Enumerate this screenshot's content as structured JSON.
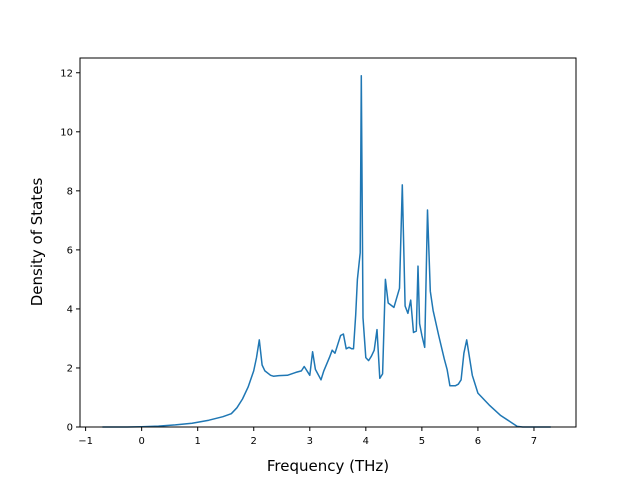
{
  "chart_data": {
    "type": "line",
    "title": "",
    "xlabel": "Frequency (THz)",
    "ylabel": "Density of States",
    "xlim": [
      -1.1,
      7.75
    ],
    "ylim": [
      0,
      12.5
    ],
    "xticks": [
      -1,
      0,
      1,
      2,
      3,
      4,
      5,
      6,
      7
    ],
    "yticks": [
      0,
      2,
      4,
      6,
      8,
      10,
      12
    ],
    "grid": false,
    "legend": "none",
    "line_color": "#1f77b4",
    "series": [
      {
        "x": [
          -0.7,
          -0.3,
          0.0,
          0.3,
          0.6,
          0.9,
          1.2,
          1.45,
          1.6,
          1.7,
          1.8,
          1.9,
          2.0,
          2.05,
          2.1,
          2.15,
          2.2,
          2.3,
          2.35,
          2.45,
          2.6,
          2.75,
          2.85,
          2.9,
          3.0,
          3.05,
          3.1,
          3.2,
          3.25,
          3.35,
          3.4,
          3.45,
          3.5,
          3.55,
          3.6,
          3.65,
          3.7,
          3.75,
          3.78,
          3.82,
          3.85,
          3.9,
          3.92,
          3.95,
          4.0,
          4.05,
          4.1,
          4.15,
          4.2,
          4.25,
          4.3,
          4.35,
          4.4,
          4.5,
          4.6,
          4.65,
          4.7,
          4.75,
          4.8,
          4.85,
          4.9,
          4.93,
          4.96,
          5.0,
          5.05,
          5.1,
          5.15,
          5.2,
          5.3,
          5.4,
          5.45,
          5.5,
          5.6,
          5.65,
          5.7,
          5.75,
          5.8,
          5.9,
          6.0,
          6.2,
          6.4,
          6.6,
          6.7,
          6.8,
          7.0,
          7.3
        ],
        "y": [
          0,
          0,
          0.01,
          0.03,
          0.07,
          0.13,
          0.23,
          0.35,
          0.45,
          0.65,
          0.95,
          1.35,
          1.9,
          2.35,
          2.95,
          2.1,
          1.9,
          1.75,
          1.72,
          1.74,
          1.75,
          1.85,
          1.9,
          2.05,
          1.75,
          2.55,
          1.95,
          1.6,
          1.9,
          2.35,
          2.6,
          2.5,
          2.8,
          3.1,
          3.15,
          2.65,
          2.7,
          2.65,
          2.65,
          3.8,
          5.0,
          5.9,
          11.9,
          3.7,
          2.35,
          2.25,
          2.4,
          2.6,
          3.3,
          1.65,
          1.8,
          5.0,
          4.2,
          4.05,
          4.7,
          8.2,
          4.1,
          3.85,
          4.3,
          3.2,
          3.25,
          5.45,
          3.5,
          3.1,
          2.7,
          7.35,
          4.6,
          3.95,
          3.1,
          2.3,
          1.95,
          1.4,
          1.4,
          1.45,
          1.6,
          2.5,
          2.95,
          1.75,
          1.15,
          0.75,
          0.4,
          0.15,
          0.02,
          0,
          0,
          0
        ]
      }
    ]
  }
}
